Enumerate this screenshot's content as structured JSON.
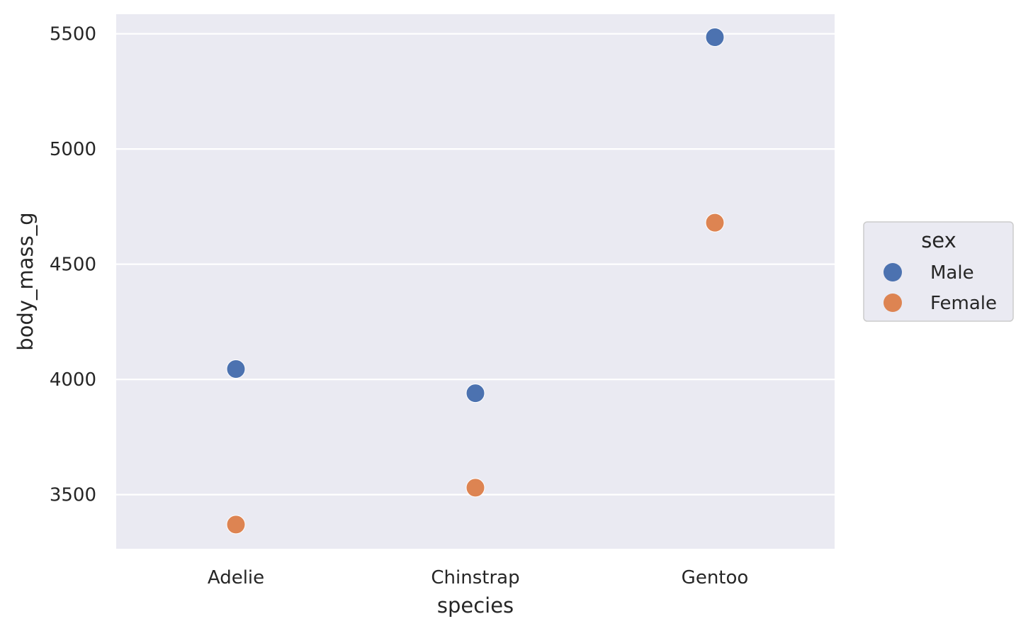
{
  "chart_data": {
    "type": "scatter",
    "title": "",
    "xlabel": "species",
    "ylabel": "body_mass_g",
    "categories": [
      "Adelie",
      "Chinstrap",
      "Gentoo"
    ],
    "ylim": [
      3265,
      5585
    ],
    "yticks": [
      3500,
      4000,
      4500,
      5000,
      5500
    ],
    "grid": true,
    "legend": {
      "title": "sex",
      "placement": "right"
    },
    "series": [
      {
        "name": "Male",
        "color": "#4c72b0",
        "values": [
          4045,
          3940,
          5485
        ]
      },
      {
        "name": "Female",
        "color": "#dd8452",
        "values": [
          3370,
          3530,
          4680
        ]
      }
    ]
  }
}
